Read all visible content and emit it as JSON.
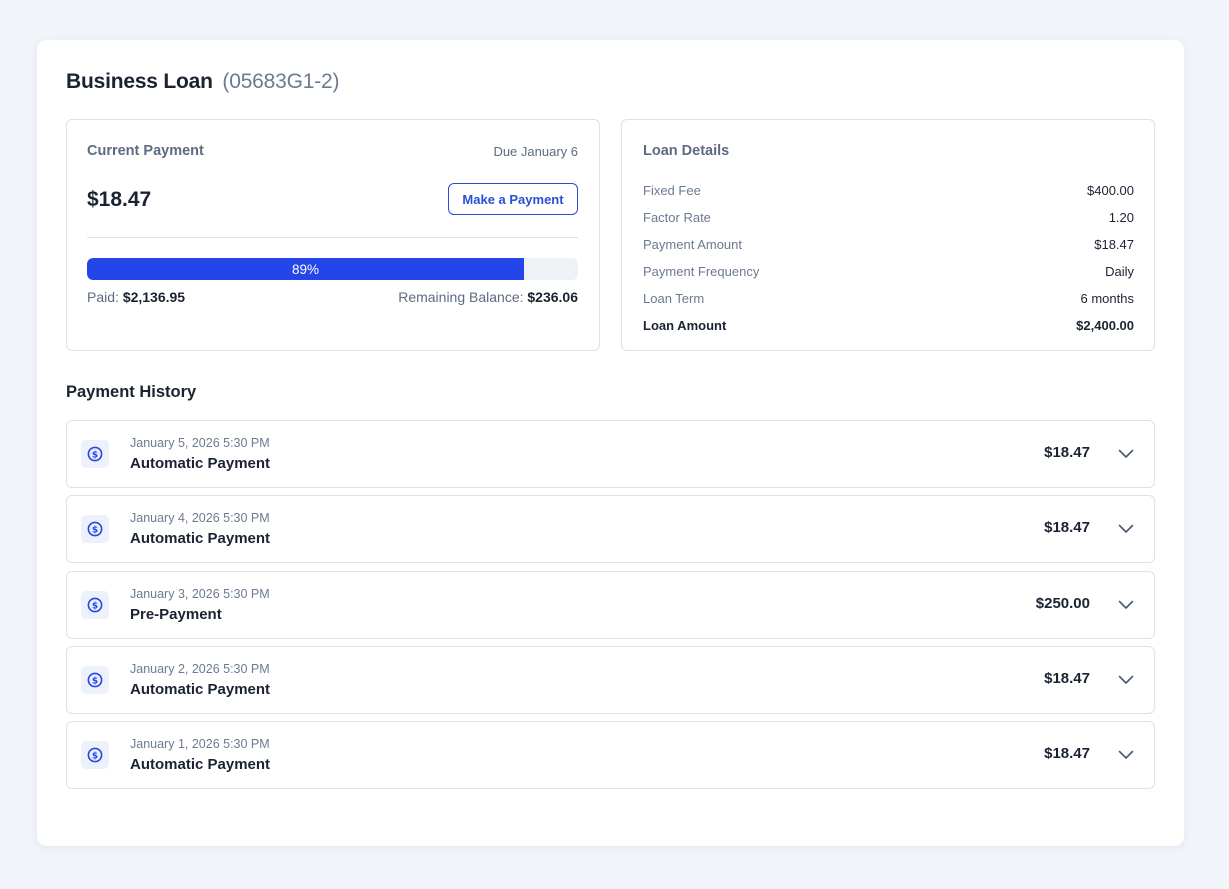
{
  "page": {
    "title": "Business Loan",
    "loan_id": "(05683G1-2)"
  },
  "current_payment": {
    "heading": "Current Payment",
    "due": "Due January 6",
    "amount": "$18.47",
    "button_label": "Make a Payment",
    "progress_percent": 89,
    "progress_label": "89%",
    "paid_label": "Paid:",
    "paid_value": "$2,136.95",
    "remaining_label": "Remaining Balance:",
    "remaining_value": "$236.06"
  },
  "loan_details": {
    "heading": "Loan Details",
    "rows": [
      {
        "label": "Fixed Fee",
        "value": "$400.00"
      },
      {
        "label": "Factor Rate",
        "value": "1.20"
      },
      {
        "label": "Payment Amount",
        "value": "$18.47"
      },
      {
        "label": "Payment Frequency",
        "value": "Daily"
      },
      {
        "label": "Loan Term",
        "value": "6 months"
      },
      {
        "label": "Loan Amount",
        "value": "$2,400.00"
      }
    ]
  },
  "payment_history": {
    "heading": "Payment History",
    "items": [
      {
        "date": "January 5, 2026 5:30 PM",
        "type": "Automatic Payment",
        "amount": "$18.47",
        "icon": "dollar-circle-icon"
      },
      {
        "date": "January 4, 2026 5:30 PM",
        "type": "Automatic Payment",
        "amount": "$18.47",
        "icon": "dollar-circle-icon"
      },
      {
        "date": "January 3, 2026 5:30 PM",
        "type": "Pre-Payment",
        "amount": "$250.00",
        "icon": "dollar-circle-icon"
      },
      {
        "date": "January 2, 2026 5:30 PM",
        "type": "Automatic Payment",
        "amount": "$18.47",
        "icon": "dollar-circle-icon"
      },
      {
        "date": "January 1, 2026 5:30 PM",
        "type": "Automatic Payment",
        "amount": "$18.47",
        "icon": "dollar-circle-icon"
      }
    ]
  },
  "colors": {
    "accent": "#2446e8",
    "button_text": "#2a4fd6",
    "text_primary": "#1b2333",
    "text_secondary": "#6c7a92",
    "border": "#dde2ea",
    "background": "#f1f4f9"
  }
}
